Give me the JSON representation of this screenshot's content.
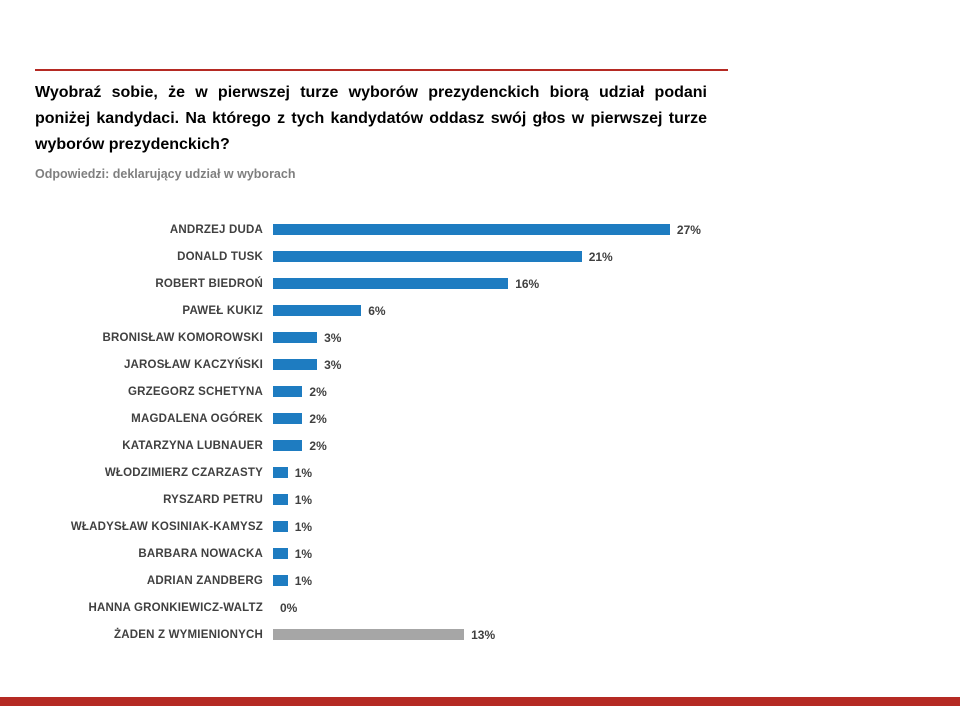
{
  "colors": {
    "accent_red": "#b52a23",
    "bar_blue": "#1e7cc1",
    "bar_gray": "#a6a6a6",
    "label_gray": "#404040",
    "subtitle_gray": "#7f7f7f"
  },
  "header": {
    "title": "Wyobraź sobie, że w pierwszej turze wyborów prezydenckich biorą udział podani poniżej kandydaci. Na którego z tych kandydatów oddasz swój głos w pierwszej turze wyborów prezydenckich?",
    "subtitle": "Odpowiedzi: deklarujący udział w wyborach"
  },
  "chart_data": {
    "type": "bar",
    "orientation": "horizontal",
    "title": "Wyobraź sobie, że w pierwszej turze wyborów prezydenckich biorą udział podani poniżej kandydaci. Na którego z tych kandydatów oddasz swój głos w pierwszej turze wyborów prezydenckich?",
    "subtitle": "Odpowiedzi: deklarujący udział w wyborach",
    "xlabel": "",
    "ylabel": "",
    "xlim": [
      0,
      29
    ],
    "grid": false,
    "legend": false,
    "categories": [
      "ANDRZEJ DUDA",
      "DONALD TUSK",
      "ROBERT BIEDROŃ",
      "PAWEŁ KUKIZ",
      "BRONISŁAW KOMOROWSKI",
      "JAROSŁAW KACZYŃSKI",
      "GRZEGORZ SCHETYNA",
      "MAGDALENA OGÓREK",
      "KATARZYNA LUBNAUER",
      "WŁODZIMIERZ CZARZASTY",
      "RYSZARD PETRU",
      "WŁADYSŁAW KOSINIAK-KAMYSZ",
      "BARBARA NOWACKA",
      "ADRIAN ZANDBERG",
      "HANNA GRONKIEWICZ-WALTZ",
      "ŻADEN Z WYMIENIONYCH"
    ],
    "values": [
      27,
      21,
      16,
      6,
      3,
      3,
      2,
      2,
      2,
      1,
      1,
      1,
      1,
      1,
      0,
      13
    ],
    "value_labels": [
      "27%",
      "21%",
      "16%",
      "6%",
      "3%",
      "3%",
      "2%",
      "2%",
      "2%",
      "1%",
      "1%",
      "1%",
      "1%",
      "1%",
      "0%",
      "13%"
    ],
    "bar_colors": [
      "#1e7cc1",
      "#1e7cc1",
      "#1e7cc1",
      "#1e7cc1",
      "#1e7cc1",
      "#1e7cc1",
      "#1e7cc1",
      "#1e7cc1",
      "#1e7cc1",
      "#1e7cc1",
      "#1e7cc1",
      "#1e7cc1",
      "#1e7cc1",
      "#1e7cc1",
      "#1e7cc1",
      "#a6a6a6"
    ]
  }
}
